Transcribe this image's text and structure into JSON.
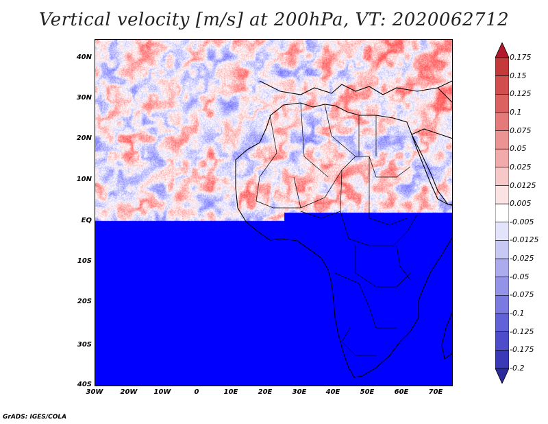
{
  "title": "Vertical velocity [m/s] at 200hPa, VT: 2020062712",
  "footer": "GrADS: IGES/COLA",
  "map": {
    "lat_labels": [
      "40N",
      "30N",
      "20N",
      "10N",
      "EQ",
      "10S",
      "20S",
      "30S",
      "40S"
    ],
    "lon_labels": [
      "30W",
      "20W",
      "10W",
      "0",
      "10E",
      "20E",
      "30E",
      "40E",
      "50E",
      "60E",
      "70E"
    ],
    "lat_range": [
      -40,
      45
    ],
    "lon_range": [
      -30,
      75
    ]
  },
  "colorbar": {
    "labels": [
      "0.175",
      "0.15",
      "0.125",
      "0.1",
      "0.075",
      "0.05",
      "0.025",
      "0.0125",
      "0.005",
      "-0.005",
      "-0.0125",
      "-0.025",
      "-0.05",
      "-0.075",
      "-0.1",
      "-0.125",
      "-0.175",
      "-0.2"
    ],
    "colors": [
      "#b2182b",
      "#c43a3a",
      "#d24d4d",
      "#dc6262",
      "#e57a7a",
      "#ec9393",
      "#f2abab",
      "#f7c8c8",
      "#fbe3e3",
      "#ffffff",
      "#e3e3fb",
      "#c8c8f5",
      "#ababee",
      "#9393e8",
      "#7a7ae0",
      "#6262d8",
      "#4d4dcc",
      "#3a3ab8",
      "#2a2a9a"
    ]
  }
}
